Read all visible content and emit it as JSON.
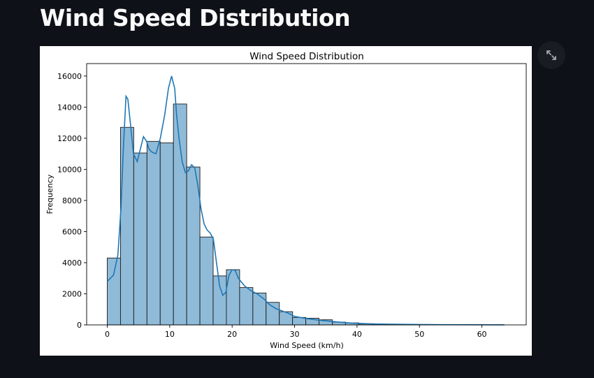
{
  "page": {
    "title": "Wind Speed Distribution"
  },
  "toolbar": {
    "expand_icon": "fullscreen-expand-icon"
  },
  "colors": {
    "bar_fill": "#8fbbd9",
    "bar_edge": "#1a1a1a",
    "kde_line": "#1f77b4",
    "background": "#0e1117"
  },
  "chart_data": {
    "type": "bar",
    "title": "Wind Speed Distribution",
    "xlabel": "Wind Speed (km/h)",
    "ylabel": "Frequency",
    "xlim": [
      -3.3,
      67.1
    ],
    "ylim": [
      0,
      16800
    ],
    "xticks": [
      0,
      10,
      20,
      30,
      40,
      50,
      60
    ],
    "yticks": [
      0,
      2000,
      4000,
      6000,
      8000,
      10000,
      12000,
      14000,
      16000
    ],
    "bin_edges": [
      0,
      2.12,
      4.24,
      6.36,
      8.48,
      10.6,
      12.72,
      14.84,
      16.96,
      19.08,
      21.2,
      23.32,
      25.44,
      27.56,
      29.68,
      31.8,
      33.92,
      36.04,
      38.16,
      40.28,
      42.4,
      44.52,
      46.64,
      48.76,
      50.88,
      53.0,
      55.12,
      57.24,
      59.36,
      61.48,
      63.6
    ],
    "values": [
      4300,
      12700,
      11050,
      11800,
      11700,
      14200,
      10150,
      5650,
      3150,
      3550,
      2400,
      2050,
      1450,
      850,
      480,
      430,
      330,
      180,
      130,
      60,
      40,
      30,
      20,
      15,
      10,
      8,
      5,
      5,
      3,
      2
    ],
    "grid": false,
    "kde": {
      "x": [
        0,
        1,
        1.7,
        2.2,
        2.6,
        3.0,
        3.3,
        3.7,
        4.2,
        4.8,
        5.3,
        5.8,
        6.3,
        6.7,
        7.2,
        7.8,
        8.5,
        9.2,
        9.8,
        10.3,
        10.8,
        11.1,
        11.5,
        12.0,
        12.5,
        13.0,
        13.5,
        14.0,
        14.5,
        15.0,
        15.5,
        16.0,
        16.5,
        17.0,
        17.5,
        18.0,
        18.5,
        19.0,
        19.5,
        20.0,
        20.5,
        21.0,
        22.0,
        23.0,
        24.0,
        25.0,
        26.0,
        27.0,
        28.0,
        29.0,
        30.0,
        32.0,
        34.0,
        36.0,
        38.0,
        40.0,
        43.0,
        46.0,
        50.0,
        55.0,
        60.0,
        63.6
      ],
      "y": [
        2800,
        3200,
        4500,
        7500,
        11500,
        14700,
        14500,
        13000,
        11000,
        10500,
        11300,
        12100,
        11800,
        11300,
        11100,
        11000,
        12000,
        13500,
        15200,
        16000,
        15200,
        13500,
        12000,
        10500,
        9800,
        9900,
        10300,
        10100,
        9000,
        7500,
        6500,
        6100,
        5900,
        5500,
        4000,
        2500,
        1900,
        2100,
        3200,
        3550,
        3500,
        3000,
        2500,
        2200,
        2000,
        1700,
        1300,
        1050,
        900,
        750,
        550,
        400,
        300,
        220,
        150,
        100,
        60,
        40,
        25,
        15,
        10,
        5
      ]
    }
  }
}
